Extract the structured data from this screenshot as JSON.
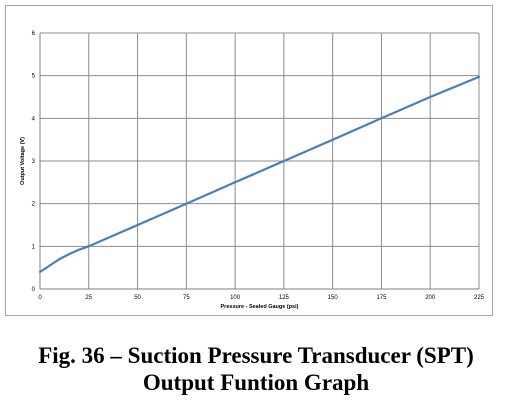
{
  "caption": {
    "line1": "Fig. 36 – Suction Pressure Transducer (SPT)",
    "line2": "Output Funtion Graph"
  },
  "chart_data": {
    "type": "line",
    "title": "",
    "xlabel": "Pressure - Sealed Gauge (psi)",
    "ylabel": "Output Voltage (V)",
    "xlim": [
      0,
      225
    ],
    "ylim": [
      0,
      6
    ],
    "xticks": [
      0,
      25,
      50,
      75,
      100,
      125,
      150,
      175,
      200,
      225
    ],
    "yticks": [
      0,
      1,
      2,
      3,
      4,
      5,
      6
    ],
    "grid": true,
    "legend": "none",
    "series": [
      {
        "color": "#4a7ebb",
        "x": [
          0,
          5,
          10,
          15,
          20,
          25,
          50,
          75,
          100,
          125,
          150,
          175,
          200,
          225
        ],
        "y": [
          0.4,
          0.55,
          0.7,
          0.82,
          0.92,
          1.0,
          1.5,
          2.0,
          2.5,
          3.0,
          3.5,
          4.0,
          4.5,
          4.97
        ]
      }
    ]
  }
}
